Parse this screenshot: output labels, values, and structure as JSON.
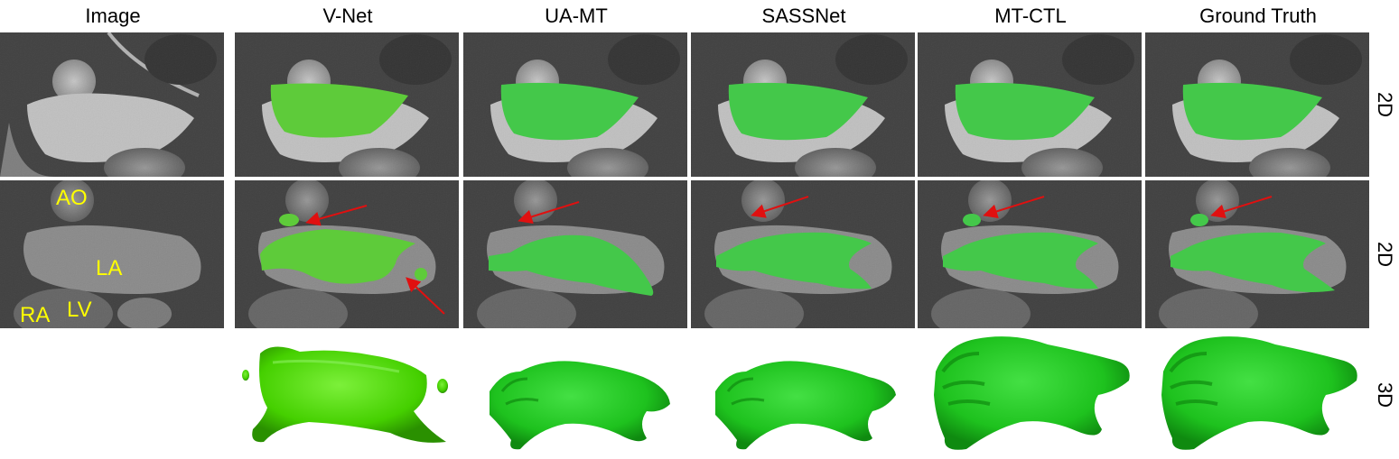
{
  "columns": [
    {
      "key": "image",
      "title": "Image"
    },
    {
      "key": "vnet",
      "title": "V-Net"
    },
    {
      "key": "uamt",
      "title": "UA-MT"
    },
    {
      "key": "sassnet",
      "title": "SASSNet"
    },
    {
      "key": "mtctl",
      "title": "MT-CTL"
    },
    {
      "key": "gt",
      "title": "Ground Truth"
    }
  ],
  "row_labels": [
    "2D",
    "2D",
    "3D"
  ],
  "anatomy_labels": {
    "ao": "AO",
    "la": "LA",
    "ra": "RA",
    "lv": "LV"
  },
  "colors": {
    "segmentation_vnet": "#5ecb3a",
    "segmentation": "#44c84a",
    "annotation_arrow": "#e01010",
    "anatomy_label": "#ffff00",
    "render_vnet": "#4fd600",
    "render": "#1fc41f"
  }
}
